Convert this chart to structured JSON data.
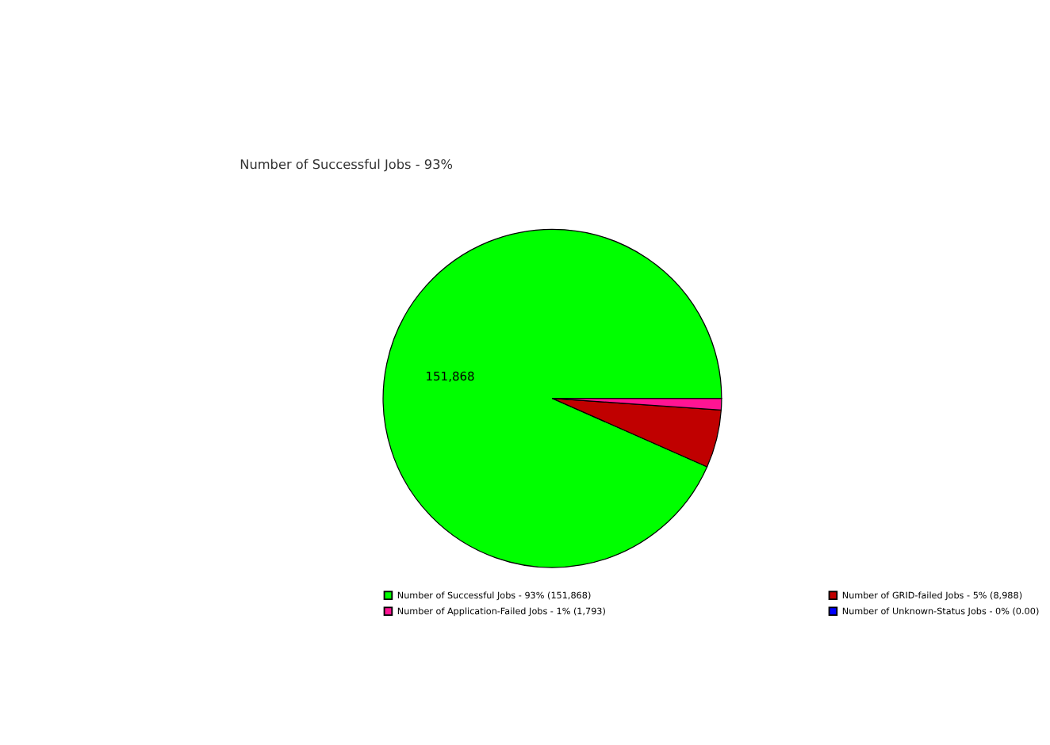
{
  "chart_data": {
    "type": "pie",
    "categories": [
      "Number of Successful Jobs - 93% (151,868)",
      "Number of GRID-failed Jobs - 5% (8,988)",
      "Number of Application-Failed Jobs - 1% (1,793)",
      "Number of Unknown-Status Jobs - 0% (0.00)"
    ],
    "values": [
      151868,
      8988,
      1793,
      0
    ],
    "colors": [
      "#00ff00",
      "#c00000",
      "#ff1493",
      "#0000ff"
    ],
    "value_labels": [
      "151,868",
      null,
      null,
      null
    ],
    "annotations": [
      "Number of Successful Jobs - 93%"
    ],
    "legend": "bottom"
  }
}
